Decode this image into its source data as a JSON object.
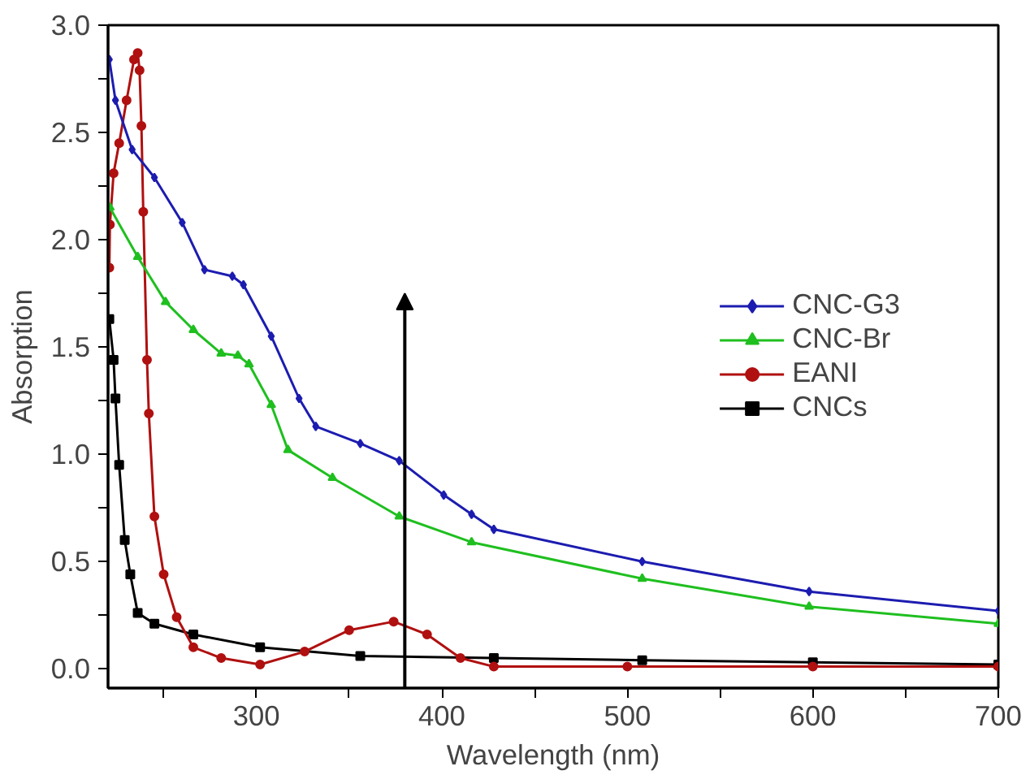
{
  "chart_data": {
    "type": "line",
    "xlabel": "Wavelength (nm)",
    "ylabel": "Absorption",
    "xlim": [
      220,
      700
    ],
    "ylim": [
      -0.09,
      3.0
    ],
    "xticks": [
      {
        "value": 250,
        "label": null
      },
      300,
      {
        "value": 350,
        "label": null
      },
      400,
      {
        "value": 450,
        "label": null
      },
      500,
      {
        "value": 550,
        "label": null
      },
      600,
      {
        "value": 650,
        "label": null
      },
      700
    ],
    "yticks": [
      "0.0",
      {
        "value": 0.25,
        "label": null
      },
      {
        "value": 0.5,
        "label": "0.5"
      },
      {
        "value": 0.75,
        "label": null
      },
      {
        "value": 1.0,
        "label": "1.0"
      },
      {
        "value": 1.25,
        "label": null
      },
      {
        "value": 1.5,
        "label": "1.5"
      },
      {
        "value": 1.75,
        "label": null
      },
      {
        "value": 2.0,
        "label": "2.0"
      },
      {
        "value": 2.25,
        "label": null
      },
      {
        "value": 2.5,
        "label": "2.5"
      },
      {
        "value": 2.75,
        "label": null
      },
      {
        "value": 3.0,
        "label": "3.0"
      }
    ],
    "legend": "right",
    "grid": false,
    "series": [
      {
        "name": "CNC-G3",
        "color": "#1c1cb0",
        "marker": "diamond",
        "x": [
          220.7,
          224,
          233,
          245,
          260,
          272,
          287,
          293,
          308,
          323,
          332,
          356,
          377,
          401,
          416,
          428,
          508,
          598,
          700
        ],
        "values": [
          2.84,
          2.65,
          2.42,
          2.29,
          2.08,
          1.86,
          1.83,
          1.79,
          1.55,
          1.26,
          1.13,
          1.05,
          0.97,
          0.81,
          0.72,
          0.65,
          0.5,
          0.36,
          0.27
        ]
      },
      {
        "name": "CNC-Br",
        "color": "#1fbf1f",
        "marker": "triangle",
        "x": [
          221,
          236,
          251,
          266,
          281,
          290,
          296,
          308,
          317,
          341,
          377,
          416,
          508,
          598,
          700
        ],
        "values": [
          2.15,
          1.92,
          1.71,
          1.58,
          1.47,
          1.46,
          1.42,
          1.23,
          1.02,
          0.89,
          0.71,
          0.59,
          0.42,
          0.29,
          0.21
        ]
      },
      {
        "name": "EANI",
        "color": "#b01010",
        "marker": "circle",
        "x": [
          220.7,
          221,
          223,
          226,
          230,
          234,
          236,
          237,
          238,
          239,
          241,
          242,
          245,
          250,
          257,
          266,
          281,
          302,
          326,
          350,
          374,
          392,
          410,
          428,
          500,
          600,
          700
        ],
        "values": [
          1.87,
          2.07,
          2.31,
          2.45,
          2.65,
          2.84,
          2.87,
          2.79,
          2.53,
          2.13,
          1.44,
          1.19,
          0.71,
          0.44,
          0.24,
          0.1,
          0.05,
          0.02,
          0.08,
          0.18,
          0.22,
          0.16,
          0.05,
          0.01,
          0.01,
          0.01,
          0.01
        ]
      },
      {
        "name": "CNCs",
        "color": "#000000",
        "marker": "square",
        "x": [
          220.7,
          223,
          224,
          226,
          229,
          232,
          236,
          245,
          266,
          302,
          356,
          428,
          508,
          600,
          700
        ],
        "values": [
          1.63,
          1.44,
          1.26,
          0.95,
          0.6,
          0.44,
          0.26,
          0.21,
          0.16,
          0.1,
          0.06,
          0.05,
          0.04,
          0.03,
          0.02
        ]
      }
    ]
  }
}
